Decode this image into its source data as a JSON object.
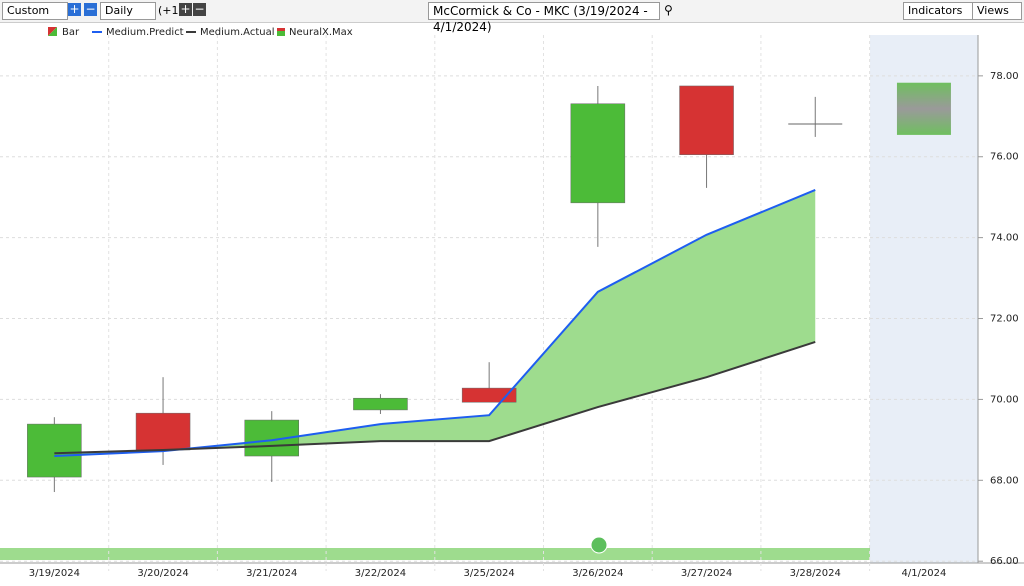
{
  "toolbar": {
    "period": "Custom",
    "interval": "Daily",
    "offset": "(+1)",
    "indicators": "Indicators",
    "views": "Views"
  },
  "chart_data": {
    "type": "candlestick",
    "title": "McCormick & Co - MKC (3/19/2024 - 4/1/2024)",
    "categories": [
      "3/19/2024",
      "3/20/2024",
      "3/21/2024",
      "3/22/2024",
      "3/25/2024",
      "3/26/2024",
      "3/27/2024",
      "3/28/2024",
      "4/1/2024"
    ],
    "candles": {
      "name": "Bar",
      "up_color": "#4cbb38",
      "down_color": "#d63333",
      "open": [
        68.08,
        69.66,
        68.6,
        69.74,
        70.28,
        74.86,
        77.75,
        76.81,
        null
      ],
      "high": [
        69.56,
        70.55,
        69.71,
        70.13,
        70.92,
        77.75,
        77.75,
        77.48,
        null
      ],
      "low": [
        67.71,
        68.38,
        67.96,
        69.64,
        69.93,
        73.77,
        75.23,
        76.49,
        null
      ],
      "close": [
        69.39,
        68.75,
        69.49,
        70.03,
        69.93,
        77.31,
        76.05,
        76.81,
        null
      ]
    },
    "series": [
      {
        "name": "Medium.Predict",
        "color": "#1e5ef0",
        "values": [
          68.6,
          68.72,
          68.99,
          69.39,
          69.61,
          72.66,
          74.07,
          75.18,
          null
        ]
      },
      {
        "name": "Medium.Actual",
        "color": "#3a3a3a",
        "values": [
          68.67,
          68.75,
          68.85,
          68.97,
          68.97,
          69.81,
          70.55,
          71.42,
          null
        ]
      }
    ],
    "fill_color": "#9edc8e",
    "neuralx": {
      "name": "NeuralX.Max",
      "high": [
        null,
        null,
        null,
        null,
        null,
        null,
        null,
        null,
        77.83
      ],
      "low": [
        null,
        null,
        null,
        null,
        null,
        null,
        null,
        null,
        76.54
      ]
    },
    "ylim": [
      65.98,
      79.01
    ],
    "yticks": [
      {
        "value": 66,
        "label": "66.00"
      },
      {
        "value": 68,
        "label": "68.00"
      },
      {
        "value": 70,
        "label": "70.00"
      },
      {
        "value": 72,
        "label": "72.00"
      },
      {
        "value": 74,
        "label": "74.00"
      },
      {
        "value": 76,
        "label": "76.00"
      },
      {
        "value": 78,
        "label": "78.00"
      }
    ],
    "grid": true
  }
}
